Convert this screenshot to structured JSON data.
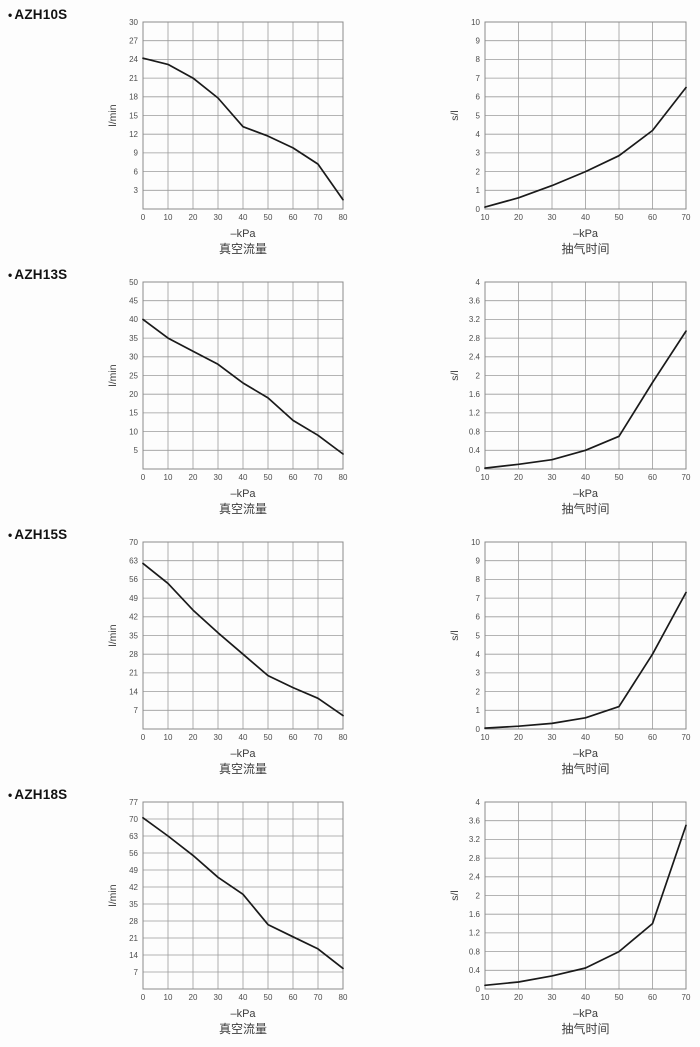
{
  "colors": {
    "grid": "#9b9b9b",
    "frame": "#8a8a8a",
    "curve": "#1a1a1a",
    "tick_text": "#4d4d4d",
    "axis_label_text": "#3c3c3c",
    "title_text": "#111111",
    "background": "#fdfdfd"
  },
  "sections": [
    {
      "bullet": "•",
      "label": "AZH10S"
    },
    {
      "bullet": "•",
      "label": "AZH13S"
    },
    {
      "bullet": "•",
      "label": "AZH15S"
    },
    {
      "bullet": "•",
      "label": "AZH18S"
    }
  ],
  "chart_data": [
    {
      "id": "azh10s-vacuum-flow",
      "section": "AZH10S",
      "position": "left",
      "type": "line",
      "title": "真空流量",
      "xlabel": "–kPa",
      "ylabel": "l/min",
      "xlim": [
        0,
        80
      ],
      "ylim": [
        0,
        30
      ],
      "xticks": [
        0,
        10,
        20,
        30,
        40,
        50,
        60,
        70,
        80
      ],
      "yticks": [
        3,
        6,
        9,
        12,
        15,
        18,
        21,
        24,
        27,
        30
      ],
      "grid": true,
      "x": [
        0,
        10,
        20,
        30,
        40,
        50,
        60,
        70,
        80
      ],
      "y": [
        24.2,
        23.2,
        21.0,
        17.8,
        13.2,
        11.7,
        9.8,
        7.2,
        1.5
      ]
    },
    {
      "id": "azh10s-evacuation-time",
      "section": "AZH10S",
      "position": "right",
      "type": "line",
      "title": "抽气时间",
      "xlabel": "–kPa",
      "ylabel": "s/l",
      "xlim": [
        10,
        70
      ],
      "ylim": [
        0,
        10
      ],
      "xticks": [
        10,
        20,
        30,
        40,
        50,
        60,
        70
      ],
      "yticks": [
        0,
        1,
        2,
        3,
        4,
        5,
        6,
        7,
        8,
        9,
        10
      ],
      "grid": true,
      "x": [
        10,
        20,
        30,
        40,
        50,
        60,
        70
      ],
      "y": [
        0.1,
        0.6,
        1.25,
        2.0,
        2.85,
        4.2,
        6.5
      ]
    },
    {
      "id": "azh13s-vacuum-flow",
      "section": "AZH13S",
      "position": "left",
      "type": "line",
      "title": "真空流量",
      "xlabel": "–kPa",
      "ylabel": "l/min",
      "xlim": [
        0,
        80
      ],
      "ylim": [
        0,
        50
      ],
      "xticks": [
        0,
        10,
        20,
        30,
        40,
        50,
        60,
        70,
        80
      ],
      "yticks": [
        5,
        10,
        15,
        20,
        25,
        30,
        35,
        40,
        45,
        50
      ],
      "grid": true,
      "x": [
        0,
        10,
        20,
        30,
        40,
        50,
        60,
        70,
        80
      ],
      "y": [
        40.0,
        35.0,
        31.5,
        28.0,
        23.0,
        19.0,
        13.0,
        9.0,
        4.0
      ]
    },
    {
      "id": "azh13s-evacuation-time",
      "section": "AZH13S",
      "position": "right",
      "type": "line",
      "title": "抽气时间",
      "xlabel": "–kPa",
      "ylabel": "s/l",
      "xlim": [
        10,
        70
      ],
      "ylim": [
        0,
        4
      ],
      "xticks": [
        10,
        20,
        30,
        40,
        50,
        60,
        70
      ],
      "yticks": [
        0,
        0.4,
        0.8,
        1.2,
        1.6,
        2,
        2.4,
        2.8,
        3.2,
        3.6,
        4
      ],
      "grid": true,
      "x": [
        10,
        20,
        30,
        40,
        50,
        60,
        70
      ],
      "y": [
        0.02,
        0.1,
        0.2,
        0.4,
        0.7,
        1.85,
        2.95
      ]
    },
    {
      "id": "azh15s-vacuum-flow",
      "section": "AZH15S",
      "position": "left",
      "type": "line",
      "title": "真空流量",
      "xlabel": "–kPa",
      "ylabel": "l/min",
      "xlim": [
        0,
        80
      ],
      "ylim": [
        0,
        70
      ],
      "xticks": [
        0,
        10,
        20,
        30,
        40,
        50,
        60,
        70,
        80
      ],
      "yticks": [
        7,
        14,
        21,
        28,
        35,
        42,
        49,
        56,
        63,
        70
      ],
      "grid": true,
      "x": [
        0,
        10,
        20,
        30,
        40,
        50,
        60,
        70,
        80
      ],
      "y": [
        62.0,
        54.5,
        44.5,
        36.0,
        28.0,
        20.0,
        15.5,
        11.5,
        5.0
      ]
    },
    {
      "id": "azh15s-evacuation-time",
      "section": "AZH15S",
      "position": "right",
      "type": "line",
      "title": "抽气时间",
      "xlabel": "–kPa",
      "ylabel": "s/l",
      "xlim": [
        10,
        70
      ],
      "ylim": [
        0,
        10
      ],
      "xticks": [
        10,
        20,
        30,
        40,
        50,
        60,
        70
      ],
      "yticks": [
        0,
        1,
        2,
        3,
        4,
        5,
        6,
        7,
        8,
        9,
        10
      ],
      "grid": true,
      "x": [
        10,
        20,
        30,
        40,
        50,
        60,
        70
      ],
      "y": [
        0.05,
        0.15,
        0.3,
        0.6,
        1.2,
        4.0,
        7.3
      ]
    },
    {
      "id": "azh18s-vacuum-flow",
      "section": "AZH18S",
      "position": "left",
      "type": "line",
      "title": "真空流量",
      "xlabel": "–kPa",
      "ylabel": "l/min",
      "xlim": [
        0,
        80
      ],
      "ylim": [
        0,
        77
      ],
      "xticks": [
        0,
        10,
        20,
        30,
        40,
        50,
        60,
        70,
        80
      ],
      "yticks": [
        7,
        14,
        21,
        28,
        35,
        42,
        49,
        56,
        63,
        70,
        77
      ],
      "grid": true,
      "x": [
        0,
        10,
        20,
        30,
        40,
        50,
        60,
        70,
        80
      ],
      "y": [
        70.5,
        63.0,
        55.0,
        46.0,
        39.0,
        26.5,
        21.5,
        16.5,
        8.5
      ]
    },
    {
      "id": "azh18s-evacuation-time",
      "section": "AZH18S",
      "position": "right",
      "type": "line",
      "title": "抽气时间",
      "xlabel": "–kPa",
      "ylabel": "s/l",
      "xlim": [
        10,
        70
      ],
      "ylim": [
        0,
        4
      ],
      "xticks": [
        10,
        20,
        30,
        40,
        50,
        60,
        70
      ],
      "yticks": [
        0,
        0.4,
        0.8,
        1.2,
        1.6,
        2,
        2.4,
        2.8,
        3.2,
        3.6,
        4
      ],
      "grid": true,
      "x": [
        10,
        20,
        30,
        40,
        50,
        60,
        70
      ],
      "y": [
        0.08,
        0.15,
        0.28,
        0.45,
        0.8,
        1.4,
        3.5
      ]
    }
  ]
}
